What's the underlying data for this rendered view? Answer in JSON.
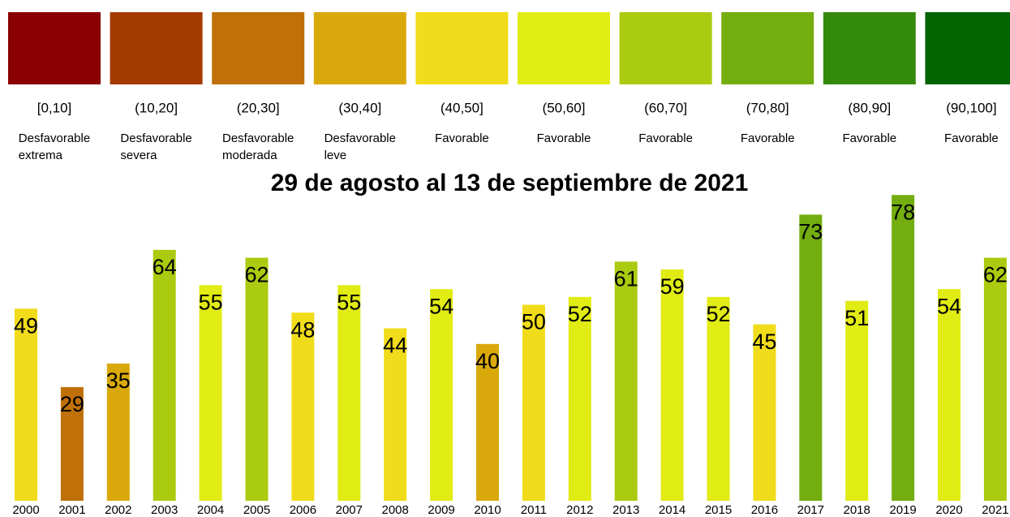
{
  "legend": [
    {
      "range": "[0,10]",
      "description": [
        "Desfavorable",
        "extrema"
      ],
      "color": "#8b0000"
    },
    {
      "range": "(10,20]",
      "description": [
        "Desfavorable",
        "severa"
      ],
      "color": "#a33a00"
    },
    {
      "range": "(20,30]",
      "description": [
        "Desfavorable",
        "moderada"
      ],
      "color": "#c07008"
    },
    {
      "range": "(30,40]",
      "description": [
        "Desfavorable",
        "leve"
      ],
      "color": "#d9a90b"
    },
    {
      "range": "(40,50]",
      "description": [
        "Favorable"
      ],
      "color": "#f0dc1a"
    },
    {
      "range": "(50,60]",
      "description": [
        "Favorable"
      ],
      "color": "#e1eb14"
    },
    {
      "range": "(60,70]",
      "description": [
        "Favorable"
      ],
      "color": "#aacb0f"
    },
    {
      "range": "(70,80]",
      "description": [
        "Favorable"
      ],
      "color": "#73ad0f"
    },
    {
      "range": "(80,90]",
      "description": [
        "Favorable"
      ],
      "color": "#348a0d"
    },
    {
      "range": "(90,100]",
      "description": [
        "Favorable"
      ],
      "color": "#006400"
    }
  ],
  "chart_data": {
    "type": "bar",
    "title": "29 de agosto al 13 de septiembre de 2021",
    "categories": [
      "2000",
      "2001",
      "2002",
      "2003",
      "2004",
      "2005",
      "2006",
      "2007",
      "2008",
      "2009",
      "2010",
      "2011",
      "2012",
      "2013",
      "2014",
      "2015",
      "2016",
      "2017",
      "2018",
      "2019",
      "2020",
      "2021"
    ],
    "values": [
      49,
      29,
      35,
      64,
      55,
      62,
      48,
      55,
      44,
      54,
      40,
      50,
      52,
      61,
      59,
      52,
      45,
      73,
      51,
      78,
      54,
      62
    ],
    "colors": [
      "#f0dc1a",
      "#c07008",
      "#d9a90b",
      "#aacb0f",
      "#e1eb14",
      "#aacb0f",
      "#f0dc1a",
      "#e1eb14",
      "#f0dc1a",
      "#e1eb14",
      "#d9a90b",
      "#f0dc1a",
      "#e1eb14",
      "#aacb0f",
      "#e1eb14",
      "#e1eb14",
      "#f0dc1a",
      "#73ad0f",
      "#e1eb14",
      "#73ad0f",
      "#e1eb14",
      "#aacb0f"
    ]
  }
}
